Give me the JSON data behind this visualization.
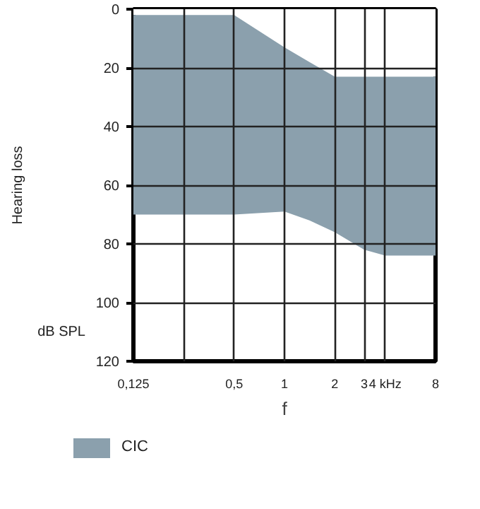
{
  "chart_data": {
    "type": "area",
    "ylabel": "Hearing loss",
    "xlabel": "f",
    "stacked": true,
    "x": [
      0.125,
      0.5,
      1,
      1.41,
      2,
      3,
      4,
      8
    ],
    "series": [
      {
        "color": "#ffffff",
        "values": [
          2,
          2,
          13,
          18,
          23,
          23,
          23,
          23
        ]
      },
      {
        "name": "CIC",
        "color": "#8ba0ad",
        "values": [
          68,
          68,
          56,
          54,
          53,
          59,
          61,
          61
        ]
      }
    ],
    "xlim": [
      0.125,
      8
    ],
    "xticks": [
      {
        "value": 0.125,
        "label": "0,125"
      },
      {
        "value": 0.25,
        "label": null
      },
      {
        "value": 0.5,
        "label": "0,5"
      },
      1,
      2,
      3,
      {
        "value": 4,
        "label": "4 kHz"
      },
      8
    ],
    "ylim": [
      120,
      0
    ],
    "yticks": [
      0,
      20,
      40,
      60,
      80,
      100,
      120
    ],
    "annotations": [
      "dB SPL"
    ],
    "grid": true,
    "legend": "bottom",
    "log": "x"
  }
}
